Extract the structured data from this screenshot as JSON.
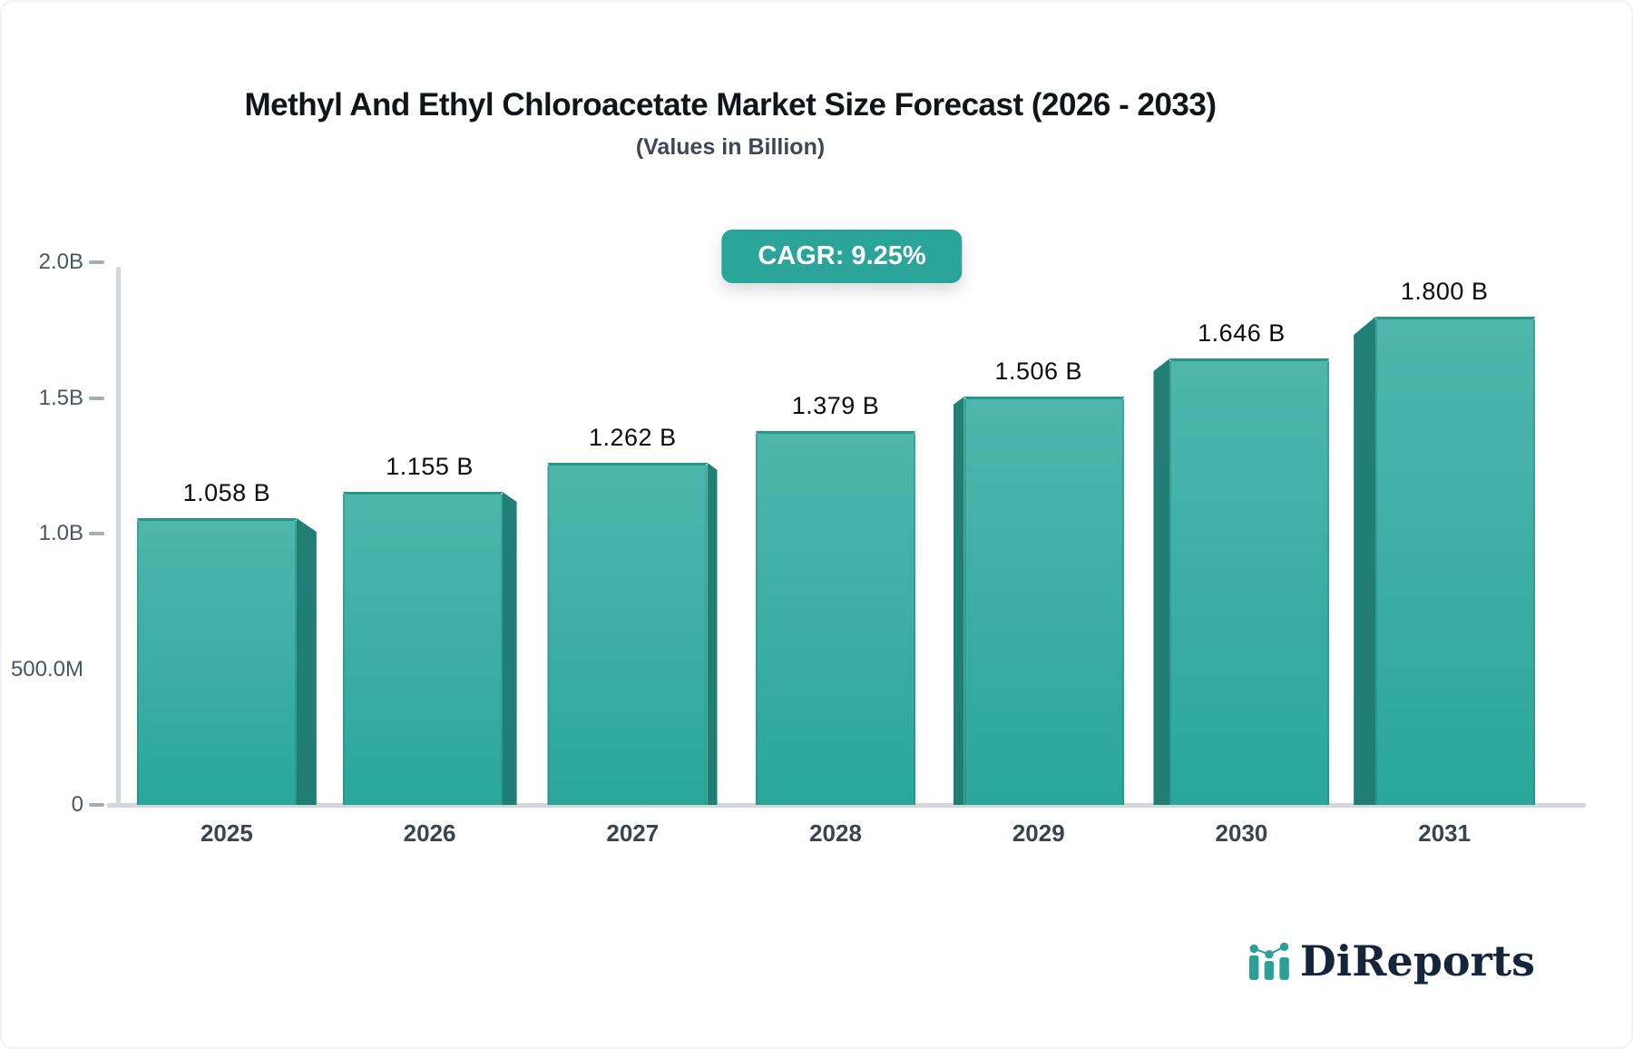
{
  "title": "Methyl And Ethyl Chloroacetate Market Size Forecast (2026 - 2033)",
  "subtitle": "(Values in Billion)",
  "cagr_badge": "CAGR: 9.25%",
  "brand": {
    "name": "DiReports",
    "icon": "bar-chart-logo-icon"
  },
  "colors": {
    "accent": "#2ba59a",
    "bar_top": "#4fb6ac",
    "bar_bottom": "#2aa79a",
    "bar_side": "#1f7d74",
    "axis": "#d3d6dc",
    "tick": "#a6adb6",
    "text_dark": "#111418",
    "text_muted": "#3f4756",
    "logo_navy": "#15263c"
  },
  "chart_data": {
    "type": "bar",
    "title": "Methyl And Ethyl Chloroacetate Market Size Forecast (2026 - 2033)",
    "subtitle": "(Values in Billion)",
    "annotation": "CAGR: 9.25%",
    "categories": [
      "2025",
      "2026",
      "2027",
      "2028",
      "2029",
      "2030",
      "2031"
    ],
    "values": [
      1.058,
      1.155,
      1.262,
      1.379,
      1.506,
      1.646,
      1.8
    ],
    "value_labels": [
      "1.058 B",
      "1.155 B",
      "1.262 B",
      "1.379 B",
      "1.506 B",
      "1.646 B",
      "1.800 B"
    ],
    "series_unit": "Billion",
    "xlabel": "",
    "ylabel": "",
    "ylim": [
      0,
      2.0
    ],
    "yticks": [
      {
        "label": "2.0B",
        "value": 2.0,
        "tick": true
      },
      {
        "label": "1.5B",
        "value": 1.5,
        "tick": true
      },
      {
        "label": "1.0B",
        "value": 1.0,
        "tick": true
      },
      {
        "label": "500.0M",
        "value": 0.5,
        "tick": false
      },
      {
        "label": "0",
        "value": 0.0,
        "tick": true
      }
    ],
    "grid": false,
    "legend": "none",
    "bar_style": "pseudo-3d, teal gradient, side face toward chart center"
  }
}
